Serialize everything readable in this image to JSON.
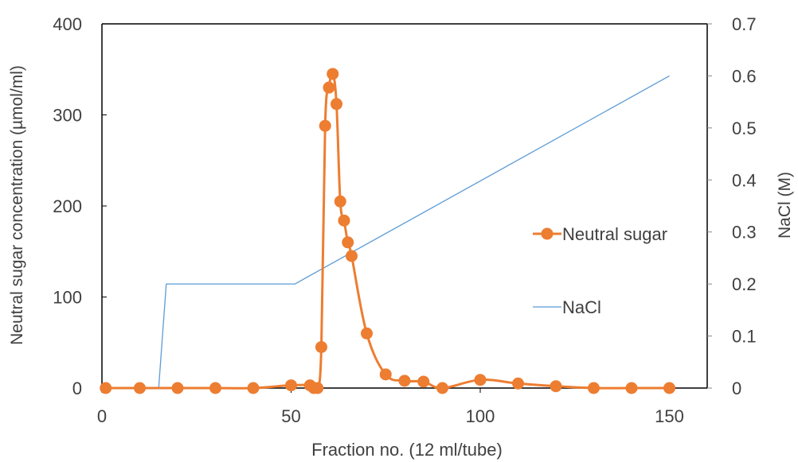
{
  "chart_data": {
    "type": "line",
    "title": "",
    "xlabel": "Fraction no. (12 ml/tube)",
    "ylabel": "Neutral sugar concentration (µmol/ml)",
    "y2label": "NaCl (M)",
    "xlim": [
      0,
      160
    ],
    "ylim": [
      0,
      400
    ],
    "y2lim": [
      0,
      0.7
    ],
    "x_ticks": [
      "0",
      "50",
      "100",
      "150"
    ],
    "x_tick_values": [
      0,
      50,
      100,
      150
    ],
    "y_ticks": [
      "0",
      "100",
      "200",
      "300",
      "400"
    ],
    "y_tick_values": [
      0,
      100,
      200,
      300,
      400
    ],
    "y2_ticks": [
      "0",
      "0.1",
      "0.2",
      "0.3",
      "0.4",
      "0.5",
      "0.6",
      "0.7"
    ],
    "y2_tick_values": [
      0,
      0.1,
      0.2,
      0.3,
      0.4,
      0.5,
      0.6,
      0.7
    ],
    "grid": false,
    "legend_position": "right",
    "series": [
      {
        "name": "Neutral sugar",
        "axis": "left",
        "color": "#ED7D31",
        "marker": "circle",
        "smooth": true,
        "x": [
          1,
          10,
          20,
          30,
          40,
          50,
          55,
          56,
          57,
          58,
          59,
          60,
          61,
          62,
          63,
          64,
          65,
          66,
          70,
          75,
          80,
          85,
          90,
          100,
          110,
          120,
          130,
          140,
          150
        ],
        "y": [
          0,
          0,
          0,
          0,
          0,
          3,
          3,
          0,
          0,
          45,
          288,
          330,
          345,
          312,
          205,
          184,
          160,
          145,
          60,
          15,
          8,
          7,
          0,
          9,
          5,
          2,
          0,
          0,
          0
        ]
      },
      {
        "name": "NaCl",
        "axis": "right",
        "color": "#5B9BD5",
        "marker": "none",
        "smooth": false,
        "x": [
          1,
          15,
          17,
          51,
          150
        ],
        "y": [
          0,
          0,
          0.2,
          0.2,
          0.6
        ]
      }
    ]
  }
}
